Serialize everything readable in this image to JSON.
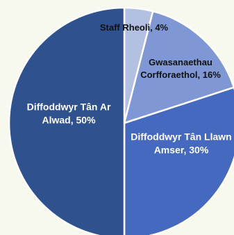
{
  "chart_data": {
    "type": "pie",
    "slices": [
      {
        "label": "Staff Rheoli",
        "value": 4,
        "color": "#b4c0e2",
        "text_color": "#111111",
        "label_lines": [
          "Staff Rheoli, 4%"
        ]
      },
      {
        "label": "Gwasanaethau Corfforaethol",
        "value": 16,
        "color": "#7f97d4",
        "text_color": "#111111",
        "label_lines": [
          "Gwasanaethau",
          "Corfforaethol, 16%"
        ]
      },
      {
        "label": "Diffoddwyr Tân Llawn Amser",
        "value": 30,
        "color": "#4569be",
        "text_color": "#ffffff",
        "label_lines": [
          "Diffoddwyr Tân Llawn",
          "Amser, 30%"
        ]
      },
      {
        "label": "Diffoddwyr Tân Ar Alwad",
        "value": 50,
        "color": "#2f528f",
        "text_color": "#ffffff",
        "label_lines": [
          "Diffoddwyr Tân Ar",
          "Alwad, 50%"
        ]
      }
    ],
    "start_angle_deg": 0,
    "direction": "clockwise",
    "slice_border_color": "#ffffff"
  }
}
